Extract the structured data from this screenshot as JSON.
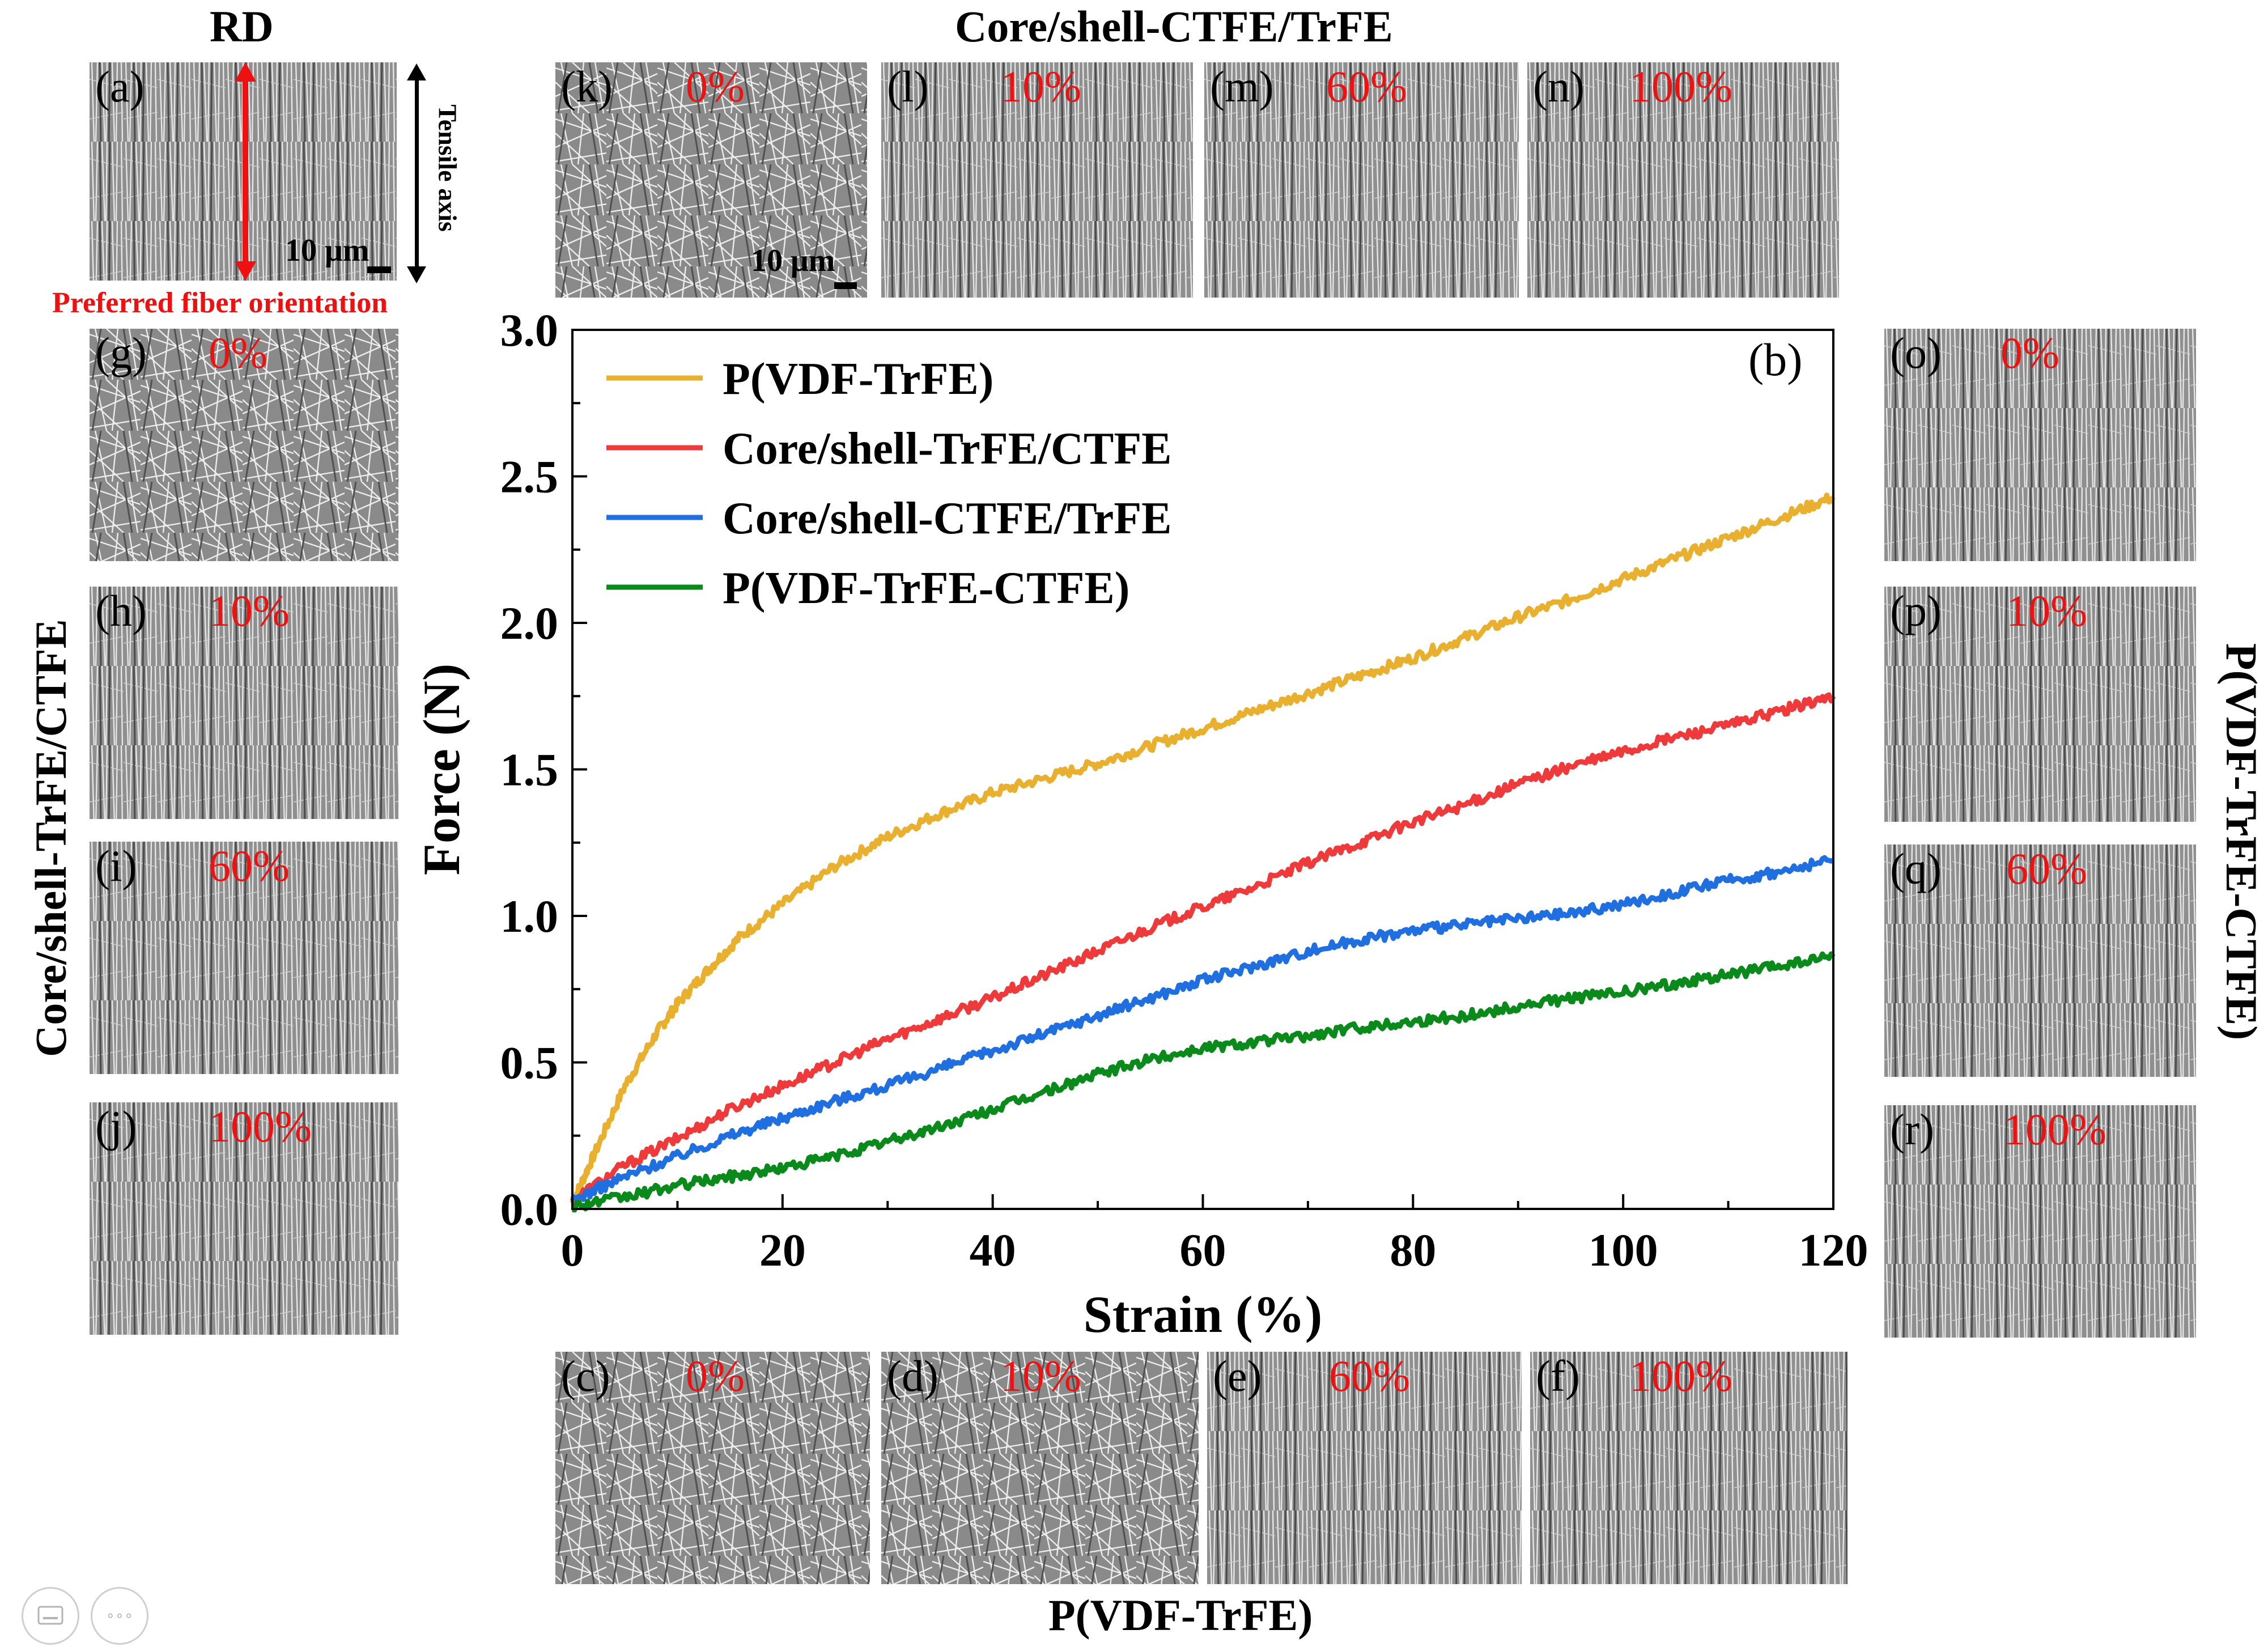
{
  "chart_data": {
    "type": "line",
    "panel_label": "(b)",
    "xlabel": "Strain (%)",
    "ylabel": "Force (N)",
    "xlim": [
      0,
      120
    ],
    "ylim": [
      0,
      3.0
    ],
    "xticks": [
      0,
      20,
      40,
      60,
      80,
      100,
      120
    ],
    "yticks": [
      0.0,
      0.5,
      1.0,
      1.5,
      2.0,
      2.5,
      3.0
    ],
    "legend_position": "top-left",
    "series": [
      {
        "name": "P(VDF-TrFE)",
        "color": "#e8b02e",
        "x": [
          0,
          2,
          5,
          8,
          10,
          13,
          16,
          20,
          25,
          30,
          35,
          40,
          45,
          50,
          55,
          60,
          65,
          70,
          75,
          80,
          85,
          90,
          95,
          100,
          105,
          110,
          115,
          120
        ],
        "y": [
          0.02,
          0.18,
          0.42,
          0.6,
          0.7,
          0.82,
          0.93,
          1.04,
          1.17,
          1.27,
          1.35,
          1.42,
          1.47,
          1.52,
          1.58,
          1.64,
          1.7,
          1.76,
          1.82,
          1.88,
          1.95,
          2.02,
          2.08,
          2.15,
          2.22,
          2.29,
          2.36,
          2.43
        ]
      },
      {
        "name": "Core/shell-TrFE/CTFE",
        "color": "#ee3a3a",
        "x": [
          0,
          5,
          10,
          15,
          20,
          25,
          30,
          35,
          40,
          45,
          50,
          55,
          60,
          65,
          70,
          75,
          80,
          85,
          90,
          95,
          100,
          105,
          110,
          115,
          120
        ],
        "y": [
          0.03,
          0.15,
          0.24,
          0.34,
          0.42,
          0.5,
          0.58,
          0.65,
          0.72,
          0.8,
          0.88,
          0.96,
          1.03,
          1.1,
          1.18,
          1.25,
          1.32,
          1.38,
          1.45,
          1.51,
          1.56,
          1.61,
          1.65,
          1.7,
          1.75
        ]
      },
      {
        "name": "Core/shell-CTFE/TrFE",
        "color": "#1f6fe0",
        "x": [
          0,
          5,
          10,
          15,
          20,
          25,
          30,
          35,
          40,
          45,
          50,
          55,
          60,
          65,
          70,
          75,
          80,
          85,
          90,
          95,
          100,
          105,
          110,
          115,
          120
        ],
        "y": [
          0.03,
          0.11,
          0.18,
          0.25,
          0.31,
          0.37,
          0.42,
          0.48,
          0.54,
          0.6,
          0.66,
          0.72,
          0.78,
          0.83,
          0.88,
          0.92,
          0.95,
          0.97,
          0.99,
          1.01,
          1.04,
          1.08,
          1.12,
          1.15,
          1.19
        ]
      },
      {
        "name": "P(VDF-TrFE-CTFE)",
        "color": "#0a8a1a",
        "x": [
          0,
          5,
          10,
          15,
          20,
          25,
          30,
          35,
          40,
          45,
          50,
          55,
          60,
          65,
          70,
          75,
          80,
          85,
          90,
          95,
          100,
          105,
          110,
          115,
          120
        ],
        "y": [
          0.01,
          0.04,
          0.08,
          0.11,
          0.14,
          0.18,
          0.23,
          0.28,
          0.34,
          0.4,
          0.46,
          0.51,
          0.55,
          0.57,
          0.59,
          0.62,
          0.64,
          0.66,
          0.69,
          0.72,
          0.74,
          0.77,
          0.8,
          0.83,
          0.86
        ]
      }
    ]
  },
  "figure": {
    "rd_title": "RD",
    "top_group_title": "Core/shell-CTFE/TrFE",
    "bottom_group_title": "P(VDF-TrFE)",
    "left_group_title": "Core/shell-TrFE/CTFE",
    "right_group_title": "P(VDF-TrFE-CTFE)",
    "tensile_axis": "Tensile axis",
    "preferred_orientation": "Preferred fiber orientation",
    "scale_bar": "10 μm",
    "panels": {
      "a": {
        "label": "(a)"
      },
      "k": {
        "label": "(k)",
        "pct": "0%"
      },
      "l": {
        "label": "(l)",
        "pct": "10%"
      },
      "m": {
        "label": "(m)",
        "pct": "60%"
      },
      "n": {
        "label": "(n)",
        "pct": "100%"
      },
      "g": {
        "label": "(g)",
        "pct": "0%"
      },
      "h": {
        "label": "(h)",
        "pct": "10%"
      },
      "i": {
        "label": "(i)",
        "pct": "60%"
      },
      "j": {
        "label": "(j)",
        "pct": "100%"
      },
      "o": {
        "label": "(o)",
        "pct": "0%"
      },
      "p": {
        "label": "(p)",
        "pct": "10%"
      },
      "q": {
        "label": "(q)",
        "pct": "60%"
      },
      "r": {
        "label": "(r)",
        "pct": "100%"
      },
      "c": {
        "label": "(c)",
        "pct": "0%"
      },
      "d": {
        "label": "(d)",
        "pct": "10%"
      },
      "e": {
        "label": "(e)",
        "pct": "60%"
      },
      "f": {
        "label": "(f)",
        "pct": "100%"
      }
    }
  },
  "viewer": {
    "keyboard_icon": "keyboard-icon",
    "more_icon": "more-icon",
    "more_glyph": "∘∘∘"
  }
}
